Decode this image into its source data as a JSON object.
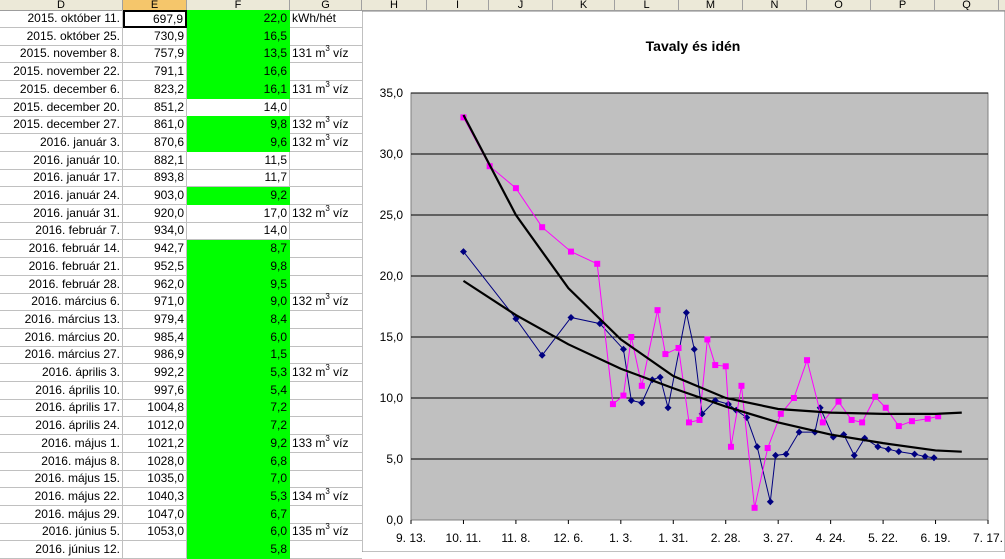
{
  "sheet": {
    "columns": [
      {
        "id": "D",
        "selected": false
      },
      {
        "id": "E",
        "selected": true
      },
      {
        "id": "F",
        "selected": false
      },
      {
        "id": "G",
        "selected": false
      },
      {
        "id": "H",
        "selected": false
      },
      {
        "id": "I",
        "selected": false
      },
      {
        "id": "J",
        "selected": false
      },
      {
        "id": "K",
        "selected": false
      },
      {
        "id": "L",
        "selected": false
      },
      {
        "id": "M",
        "selected": false
      },
      {
        "id": "N",
        "selected": false
      },
      {
        "id": "O",
        "selected": false
      },
      {
        "id": "P",
        "selected": false
      },
      {
        "id": "Q",
        "selected": false
      }
    ],
    "rows": [
      {
        "date": "2015. október 11.",
        "meter": "697,9",
        "weekly": "22,0",
        "green": true,
        "note": "kWh/hét",
        "sup": ""
      },
      {
        "date": "2015. október 25.",
        "meter": "730,9",
        "weekly": "16,5",
        "green": true,
        "note": "",
        "sup": ""
      },
      {
        "date": "2015. november 8.",
        "meter": "757,9",
        "weekly": "13,5",
        "green": true,
        "note": "131 m",
        "sup": "3",
        "noteTail": " víz"
      },
      {
        "date": "2015. november 22.",
        "meter": "791,1",
        "weekly": "16,6",
        "green": true,
        "note": "",
        "sup": ""
      },
      {
        "date": "2015. december 6.",
        "meter": "823,2",
        "weekly": "16,1",
        "green": true,
        "note": "131 m",
        "sup": "3",
        "noteTail": " víz"
      },
      {
        "date": "2015. december 20.",
        "meter": "851,2",
        "weekly": "14,0",
        "green": false,
        "note": "",
        "sup": ""
      },
      {
        "date": "2015. december 27.",
        "meter": "861,0",
        "weekly": "9,8",
        "green": true,
        "note": "132 m",
        "sup": "3",
        "noteTail": " víz"
      },
      {
        "date": "2016. január 3.",
        "meter": "870,6",
        "weekly": "9,6",
        "green": true,
        "note": "132 m",
        "sup": "3",
        "noteTail": " víz"
      },
      {
        "date": "2016. január 10.",
        "meter": "882,1",
        "weekly": "11,5",
        "green": false,
        "note": "",
        "sup": ""
      },
      {
        "date": "2016. január 17.",
        "meter": "893,8",
        "weekly": "11,7",
        "green": false,
        "note": "",
        "sup": ""
      },
      {
        "date": "2016. január 24.",
        "meter": "903,0",
        "weekly": "9,2",
        "green": true,
        "note": "",
        "sup": ""
      },
      {
        "date": "2016. január 31.",
        "meter": "920,0",
        "weekly": "17,0",
        "green": false,
        "note": "132 m",
        "sup": "3",
        "noteTail": " víz"
      },
      {
        "date": "2016. február 7.",
        "meter": "934,0",
        "weekly": "14,0",
        "green": false,
        "note": "",
        "sup": ""
      },
      {
        "date": "2016. február 14.",
        "meter": "942,7",
        "weekly": "8,7",
        "green": true,
        "note": "",
        "sup": ""
      },
      {
        "date": "2016. február 21.",
        "meter": "952,5",
        "weekly": "9,8",
        "green": true,
        "note": "",
        "sup": ""
      },
      {
        "date": "2016. február 28.",
        "meter": "962,0",
        "weekly": "9,5",
        "green": true,
        "note": "",
        "sup": ""
      },
      {
        "date": "2016. március 6.",
        "meter": "971,0",
        "weekly": "9,0",
        "green": true,
        "note": "132 m",
        "sup": "3",
        "noteTail": " víz"
      },
      {
        "date": "2016. március 13.",
        "meter": "979,4",
        "weekly": "8,4",
        "green": true,
        "note": "",
        "sup": ""
      },
      {
        "date": "2016. március 20.",
        "meter": "985,4",
        "weekly": "6,0",
        "green": true,
        "note": "",
        "sup": ""
      },
      {
        "date": "2016. március 27.",
        "meter": "986,9",
        "weekly": "1,5",
        "green": true,
        "note": "",
        "sup": ""
      },
      {
        "date": "2016. április 3.",
        "meter": "992,2",
        "weekly": "5,3",
        "green": true,
        "note": "132 m",
        "sup": "3",
        "noteTail": " víz"
      },
      {
        "date": "2016. április 10.",
        "meter": "997,6",
        "weekly": "5,4",
        "green": true,
        "note": "",
        "sup": ""
      },
      {
        "date": "2016. április 17.",
        "meter": "1004,8",
        "weekly": "7,2",
        "green": true,
        "note": "",
        "sup": ""
      },
      {
        "date": "2016. április 24.",
        "meter": "1012,0",
        "weekly": "7,2",
        "green": true,
        "note": "",
        "sup": ""
      },
      {
        "date": "2016. május 1.",
        "meter": "1021,2",
        "weekly": "9,2",
        "green": true,
        "note": "133 m",
        "sup": "3",
        "noteTail": " víz"
      },
      {
        "date": "2016. május 8.",
        "meter": "1028,0",
        "weekly": "6,8",
        "green": true,
        "note": "",
        "sup": ""
      },
      {
        "date": "2016. május 15.",
        "meter": "1035,0",
        "weekly": "7,0",
        "green": true,
        "note": "",
        "sup": ""
      },
      {
        "date": "2016. május 22.",
        "meter": "1040,3",
        "weekly": "5,3",
        "green": true,
        "note": "134 m",
        "sup": "3",
        "noteTail": " víz"
      },
      {
        "date": "2016. május 29.",
        "meter": "1047,0",
        "weekly": "6,7",
        "green": true,
        "note": "",
        "sup": ""
      },
      {
        "date": "2016. június 5.",
        "meter": "1053,0",
        "weekly": "6,0",
        "green": true,
        "note": "135 m",
        "sup": "3",
        "noteTail": " víz"
      },
      {
        "date": "2016. június 12.",
        "meter": "",
        "weekly": "5,8",
        "green": true,
        "note": "",
        "sup": ""
      }
    ]
  },
  "chart_data": {
    "type": "line",
    "title": "Tavaly és idén",
    "ylim": [
      0,
      35
    ],
    "yticks": [
      "0,0",
      "5,0",
      "10,0",
      "15,0",
      "20,0",
      "25,0",
      "30,0",
      "35,0"
    ],
    "xticks": [
      "9. 13.",
      "10. 11.",
      "11. 8.",
      "12. 6.",
      "1. 3.",
      "1. 31.",
      "2. 28.",
      "3. 27.",
      "4. 24.",
      "5. 22.",
      "6. 19.",
      "7. 17."
    ],
    "grid": true,
    "colors": {
      "blue": "#000080",
      "magenta": "#ff00ff",
      "trend": "#000000",
      "plot_bg": "#c0c0c0"
    },
    "series": [
      {
        "color": "blue",
        "marker": "diamond",
        "x": [
          1,
          2,
          2.5,
          3.05,
          3.6,
          4.05,
          4.2,
          4.4,
          4.6,
          4.75,
          4.9,
          5.25,
          5.4,
          5.55,
          5.8,
          6.05,
          6.2,
          6.4,
          6.6,
          6.85,
          6.95,
          7.15,
          7.4,
          7.7,
          7.8,
          8.05,
          8.25,
          8.45,
          8.65,
          8.9,
          9.1,
          9.3,
          9.6,
          9.8,
          9.97
        ],
        "y": [
          22.0,
          16.5,
          13.5,
          16.6,
          16.1,
          14.0,
          9.8,
          9.6,
          11.5,
          11.7,
          9.2,
          17.0,
          14.0,
          8.7,
          9.8,
          9.5,
          9.0,
          8.4,
          6.0,
          1.5,
          5.3,
          5.4,
          7.2,
          7.2,
          9.2,
          6.8,
          7.0,
          5.3,
          6.7,
          6.0,
          5.8,
          5.6,
          5.4,
          5.2,
          5.1
        ]
      },
      {
        "color": "magenta",
        "marker": "square",
        "x": [
          1,
          1.5,
          2,
          2.5,
          3.05,
          3.55,
          3.85,
          4.05,
          4.2,
          4.4,
          4.7,
          4.85,
          5.1,
          5.3,
          5.5,
          5.65,
          5.8,
          6.0,
          6.1,
          6.3,
          6.55,
          6.8,
          7.05,
          7.3,
          7.55,
          7.85,
          8.15,
          8.4,
          8.6,
          8.85,
          9.05,
          9.3,
          9.55,
          9.85,
          10.05
        ],
        "y": [
          33.0,
          29.0,
          27.2,
          24.0,
          22.0,
          21.0,
          9.5,
          10.2,
          15.0,
          11.0,
          17.2,
          13.6,
          14.1,
          8.0,
          8.2,
          14.8,
          12.7,
          12.6,
          6.0,
          11.0,
          1.0,
          5.9,
          8.7,
          10.0,
          13.1,
          8.0,
          9.7,
          8.2,
          8.0,
          10.1,
          9.2,
          7.7,
          8.1,
          8.3,
          8.5
        ]
      },
      {
        "color": "trend",
        "marker": "none",
        "x": [
          1,
          2,
          3,
          4,
          5,
          6,
          7,
          8,
          9,
          10,
          10.5
        ],
        "y": [
          33.2,
          25.0,
          19.0,
          14.8,
          11.8,
          10.0,
          9.1,
          8.8,
          8.7,
          8.7,
          8.8
        ]
      },
      {
        "color": "trend",
        "marker": "none",
        "x": [
          1,
          2,
          3,
          4,
          5,
          6,
          7,
          8,
          9,
          10,
          10.5
        ],
        "y": [
          19.6,
          16.8,
          14.4,
          12.4,
          10.8,
          9.3,
          8.0,
          7.0,
          6.3,
          5.7,
          5.6
        ]
      }
    ]
  }
}
